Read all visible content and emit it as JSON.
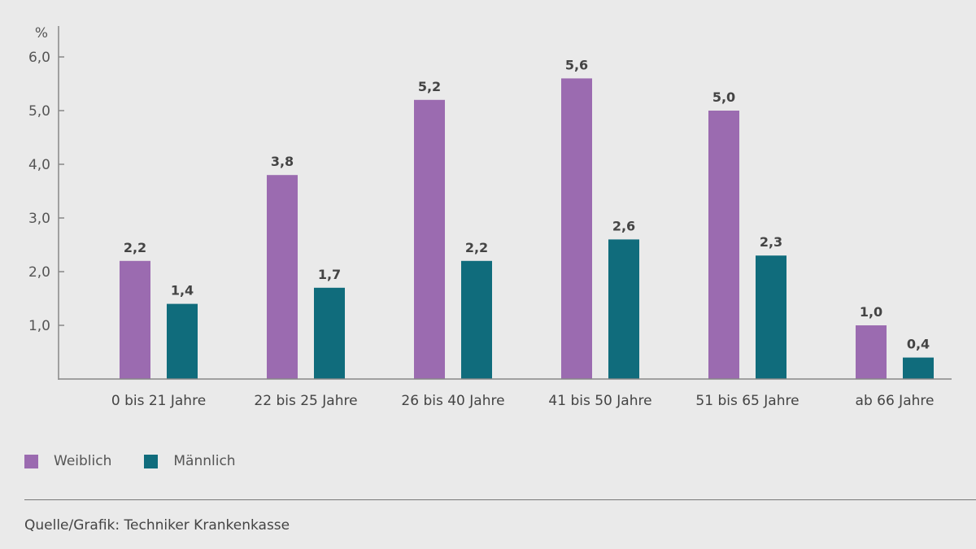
{
  "colors": {
    "weiblich": "#9b6bb0",
    "maennlich": "#106c7c"
  },
  "legend": {
    "weiblich": "Weiblich",
    "maennlich": "Männlich"
  },
  "source": "Quelle/Grafik: Techniker Krankenkasse",
  "chart_data": {
    "type": "bar",
    "title": "",
    "xlabel": "",
    "ylabel": "%",
    "ylim": [
      0,
      6.6
    ],
    "yticks": [
      1.0,
      2.0,
      3.0,
      4.0,
      5.0,
      6.0
    ],
    "ytick_labels": [
      "1,0",
      "2,0",
      "3,0",
      "4,0",
      "5,0",
      "6,0"
    ],
    "grid": false,
    "legend_position": "bottom-left",
    "categories": [
      "0 bis 21 Jahre",
      "22 bis 25 Jahre",
      "26 bis 40 Jahre",
      "41 bis 50 Jahre",
      "51 bis 65 Jahre",
      "ab 66 Jahre"
    ],
    "series": [
      {
        "name": "Weiblich",
        "values": [
          2.2,
          3.8,
          5.2,
          5.6,
          5.0,
          1.0
        ],
        "labels": [
          "2,2",
          "3,8",
          "5,2",
          "5,6",
          "5,0",
          "1,0"
        ]
      },
      {
        "name": "Männlich",
        "values": [
          1.4,
          1.7,
          2.2,
          2.6,
          2.3,
          0.4
        ],
        "labels": [
          "1,4",
          "1,7",
          "2,2",
          "2,6",
          "2,3",
          "0,4"
        ]
      }
    ]
  }
}
